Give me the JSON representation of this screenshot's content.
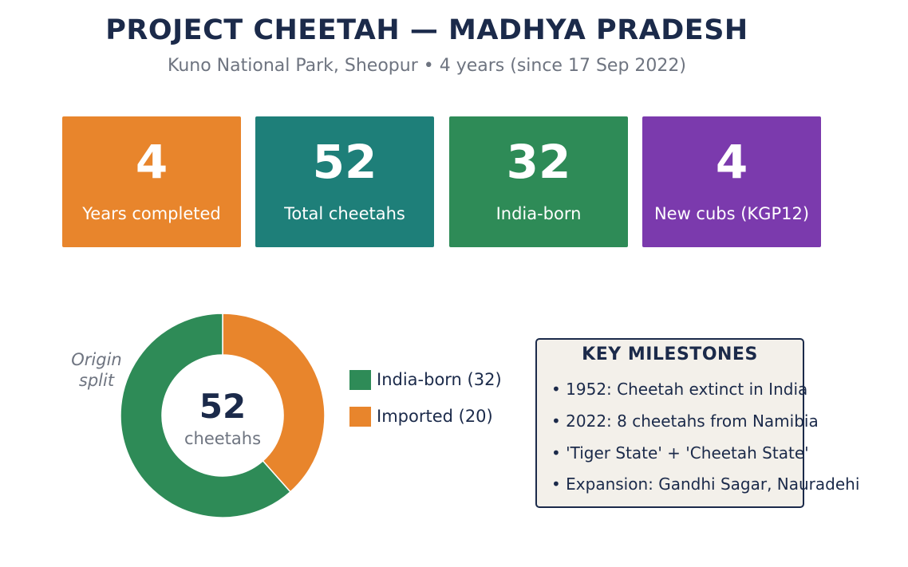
{
  "header": {
    "title": "PROJECT CHEETAH — MADHYA PRADESH",
    "subtitle": "Kuno National Park, Sheopur  •  4 years (since 17 Sep 2022)"
  },
  "cards": [
    {
      "value": "4",
      "label": "Years completed",
      "color": "#e8852c"
    },
    {
      "value": "52",
      "label": "Total cheetahs",
      "color": "#1e7f79"
    },
    {
      "value": "32",
      "label": "India-born",
      "color": "#2e8b57"
    },
    {
      "value": "4",
      "label": "New cubs (KGP12)",
      "color": "#7b3aad"
    }
  ],
  "chart_data": {
    "type": "pie",
    "title": "Origin\nsplit",
    "center_value": "52",
    "center_label": "cheetahs",
    "slices": [
      {
        "name": "Imported (20)",
        "value": 20,
        "color": "#e8852c"
      },
      {
        "name": "India-born (32)",
        "value": 32,
        "color": "#2e8b57"
      }
    ],
    "legend_order": [
      "India-born (32)",
      "Imported (20)"
    ],
    "legend_placement": "right"
  },
  "milestones": {
    "title": "KEY MILESTONES",
    "items": [
      "• 1952: Cheetah extinct in India",
      "• 2022: 8 cheetahs from Namibia",
      "• 'Tiger State' + 'Cheetah State'",
      "• Expansion: Gandhi Sagar, Nauradehi"
    ]
  }
}
